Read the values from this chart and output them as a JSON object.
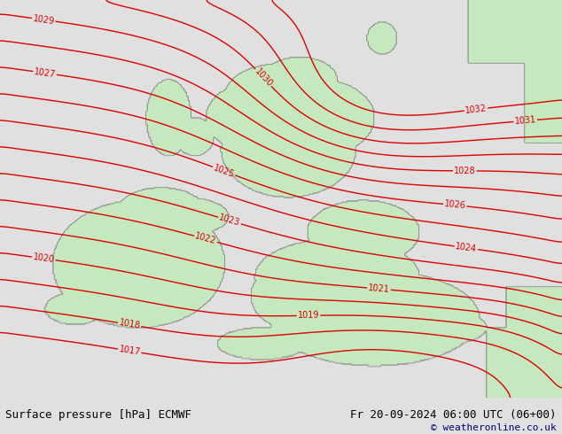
{
  "title_left": "Surface pressure [hPa] ECMWF",
  "title_right": "Fr 20-09-2024 06:00 UTC (06+00)",
  "copyright": "© weatheronline.co.uk",
  "bg_color": "#e0e0e0",
  "land_color_rgb": [
    0.78,
    0.91,
    0.75
  ],
  "sea_color": "#e0e0e0",
  "contour_color": "#dd0000",
  "contour_linewidth": 1.0,
  "label_fontsize": 7,
  "pressure_min": 1017,
  "pressure_max": 1032,
  "pressure_step": 1,
  "bottom_bar_color": "#d0d0d0",
  "title_fontsize": 9,
  "copyright_color": "#000080"
}
